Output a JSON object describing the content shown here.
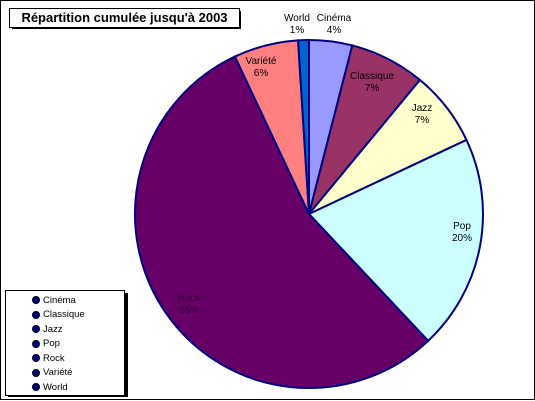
{
  "chart_data": {
    "type": "pie",
    "title": "Répartition cumulée jusqu'à 2003",
    "start_angle_deg": -90,
    "direction": "clockwise",
    "slices": [
      {
        "label": "Cinéma",
        "value": 4,
        "pct": "4%",
        "color": "#9999FF"
      },
      {
        "label": "Classique",
        "value": 7,
        "pct": "7%",
        "color": "#993366"
      },
      {
        "label": "Jazz",
        "value": 7,
        "pct": "7%",
        "color": "#FFFFCC"
      },
      {
        "label": "Pop",
        "value": 20,
        "pct": "20%",
        "color": "#CCFFFF"
      },
      {
        "label": "Rock",
        "value": 55,
        "pct": "55%",
        "color": "#660066"
      },
      {
        "label": "Variété",
        "value": 6,
        "pct": "6%",
        "color": "#FF8080"
      },
      {
        "label": "World",
        "value": 1,
        "pct": "1%",
        "color": "#0066CC"
      }
    ],
    "legend_position": "bottom-left",
    "legend": [
      "Cinéma",
      "Classique",
      "Jazz",
      "Pop",
      "Rock",
      "Variété",
      "World"
    ],
    "slice_outline_color": "#000080"
  }
}
